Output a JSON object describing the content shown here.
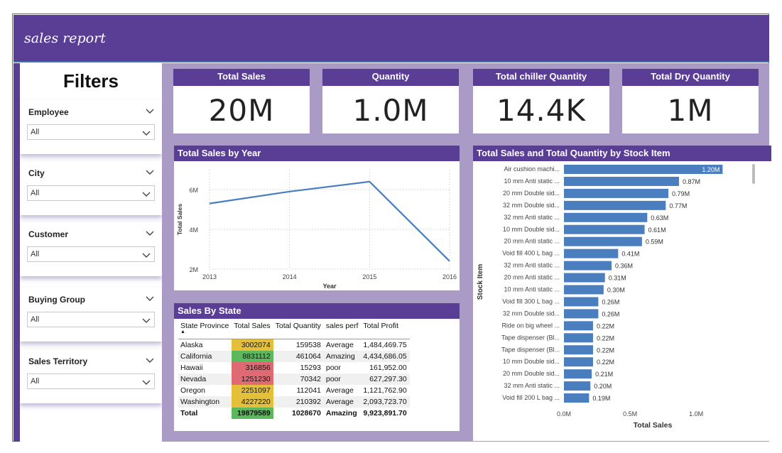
{
  "header": {
    "title": "sales report"
  },
  "sidebar": {
    "title": "Filters",
    "filters": [
      {
        "label": "Employee",
        "value": "All"
      },
      {
        "label": "City",
        "value": "All"
      },
      {
        "label": "Customer",
        "value": "All"
      },
      {
        "label": "Buying Group",
        "value": "All"
      },
      {
        "label": "Sales Territory",
        "value": "All"
      }
    ]
  },
  "kpis": [
    {
      "title": "Total Sales",
      "value": "20M"
    },
    {
      "title": "Quantity",
      "value": "1.0M"
    },
    {
      "title": "Total chiller Quantity",
      "value": "14.4K"
    },
    {
      "title": "Total Dry Quantity",
      "value": "1M"
    }
  ],
  "colors": {
    "header": "#5a3e96",
    "canvas": "#a99bc6",
    "bar": "#4a7ebf",
    "line": "#4a7ebf",
    "good": "#5cb85c",
    "average": "#e4c03a",
    "poor": "#e06a73"
  },
  "sales_by_year": {
    "title": "Total Sales by Year",
    "xlabel": "Year",
    "ylabel": "Total Sales"
  },
  "stock_chart": {
    "title": "Total Sales and Total Quantity by Stock Item",
    "xlabel": "Total Sales",
    "ylabel": "Stock Item"
  },
  "chart_data": [
    {
      "type": "line",
      "title": "Total Sales by Year",
      "xlabel": "Year",
      "ylabel": "Total Sales",
      "x": [
        "2013",
        "2014",
        "2015",
        "2016"
      ],
      "y": [
        5.3,
        5.9,
        6.4,
        2.4
      ],
      "ytick_labels": [
        "2M",
        "4M",
        "6M"
      ],
      "ytick_values": [
        2,
        4,
        6
      ],
      "ylim": [
        2,
        7
      ],
      "unit": "M",
      "grid": true
    },
    {
      "type": "bar",
      "orientation": "horizontal",
      "title": "Total Sales and Total Quantity by Stock Item",
      "xlabel": "Total Sales",
      "ylabel": "Stock Item",
      "categories": [
        "Air cushion machi...",
        "10 mm Anti static ...",
        "20 mm Double sid...",
        "32 mm Double sid...",
        "32 mm Anti static ...",
        "10 mm Double sid...",
        "20 mm Anti static ...",
        "Void fill 400 L bag ...",
        "32 mm Anti static ...",
        "20 mm Anti static ...",
        "10 mm Anti static ...",
        "Void fill 300 L bag ...",
        "32 mm Double sid...",
        "Ride on big wheel ...",
        "Tape dispenser (Bl...",
        "Tape dispenser (Bl...",
        "10 mm Double sid...",
        "20 mm Double sid...",
        "32 mm Anti static ...",
        "Void fill 200 L bag ..."
      ],
      "values": [
        1.2,
        0.87,
        0.79,
        0.77,
        0.63,
        0.61,
        0.59,
        0.41,
        0.36,
        0.31,
        0.3,
        0.26,
        0.26,
        0.22,
        0.22,
        0.22,
        0.22,
        0.21,
        0.2,
        0.19
      ],
      "labels": [
        "1.20M",
        "0.87M",
        "0.79M",
        "0.77M",
        "0.63M",
        "0.61M",
        "0.59M",
        "0.41M",
        "0.36M",
        "0.31M",
        "0.30M",
        "0.26M",
        "0.26M",
        "0.22M",
        "0.22M",
        "0.22M",
        "0.22M",
        "0.21M",
        "0.20M",
        "0.19M"
      ],
      "xtick_labels": [
        "0.0M",
        "0.5M",
        "1.0M"
      ],
      "xtick_values": [
        0,
        0.5,
        1.0
      ],
      "xlim": [
        0,
        1.3
      ],
      "unit": "M"
    }
  ],
  "sales_by_state": {
    "title": "Sales By State",
    "columns": [
      "State Province",
      "Total Sales",
      "Total Quantity",
      "sales perf",
      "Total Profit"
    ],
    "rows": [
      {
        "state": "Alaska",
        "sales": "3002074",
        "quantity": "159538",
        "perf": "Average",
        "profit": "1,484,469.75",
        "status": "average"
      },
      {
        "state": "California",
        "sales": "8831112",
        "quantity": "461064",
        "perf": "Amazing",
        "profit": "4,434,686.05",
        "status": "good"
      },
      {
        "state": "Hawaii",
        "sales": "316856",
        "quantity": "15293",
        "perf": "poor",
        "profit": "161,952.00",
        "status": "poor"
      },
      {
        "state": "Nevada",
        "sales": "1251230",
        "quantity": "70342",
        "perf": "poor",
        "profit": "627,297.30",
        "status": "poor"
      },
      {
        "state": "Oregon",
        "sales": "2251097",
        "quantity": "112041",
        "perf": "Average",
        "profit": "1,121,762.90",
        "status": "average"
      },
      {
        "state": "Washington",
        "sales": "4227220",
        "quantity": "210392",
        "perf": "Average",
        "profit": "2,093,723.70",
        "status": "average"
      }
    ],
    "total": {
      "state": "Total",
      "sales": "19879589",
      "quantity": "1028670",
      "perf": "Amazing",
      "profit": "9,923,891.70",
      "status": "good"
    }
  }
}
